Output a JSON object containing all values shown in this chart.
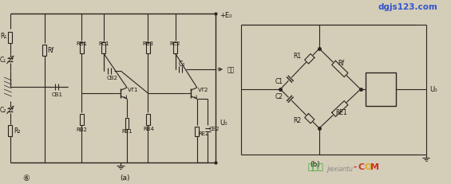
{
  "bg_color": "#d4cdb8",
  "circuit_line_color": "#2a2520",
  "text_color": "#1a1510",
  "watermark_top": "dgjs123.com",
  "watermark_top_color": "#3355cc",
  "watermark_bot1": "接线图",
  "watermark_bot1_color": "#33aa33",
  "watermark_bot2": "jiexiantu",
  "watermark_bot2_color": "#888888",
  "watermark_dot": "-",
  "watermark_dot_color": "#cc2222",
  "watermark_com": "com",
  "watermark_com_color": "#cc2222",
  "label_a": "(a)",
  "label_b": "(b)",
  "label_5": "⑥",
  "label_E0": "+E₀",
  "label_out": "输出",
  "label_U0": "U₀"
}
